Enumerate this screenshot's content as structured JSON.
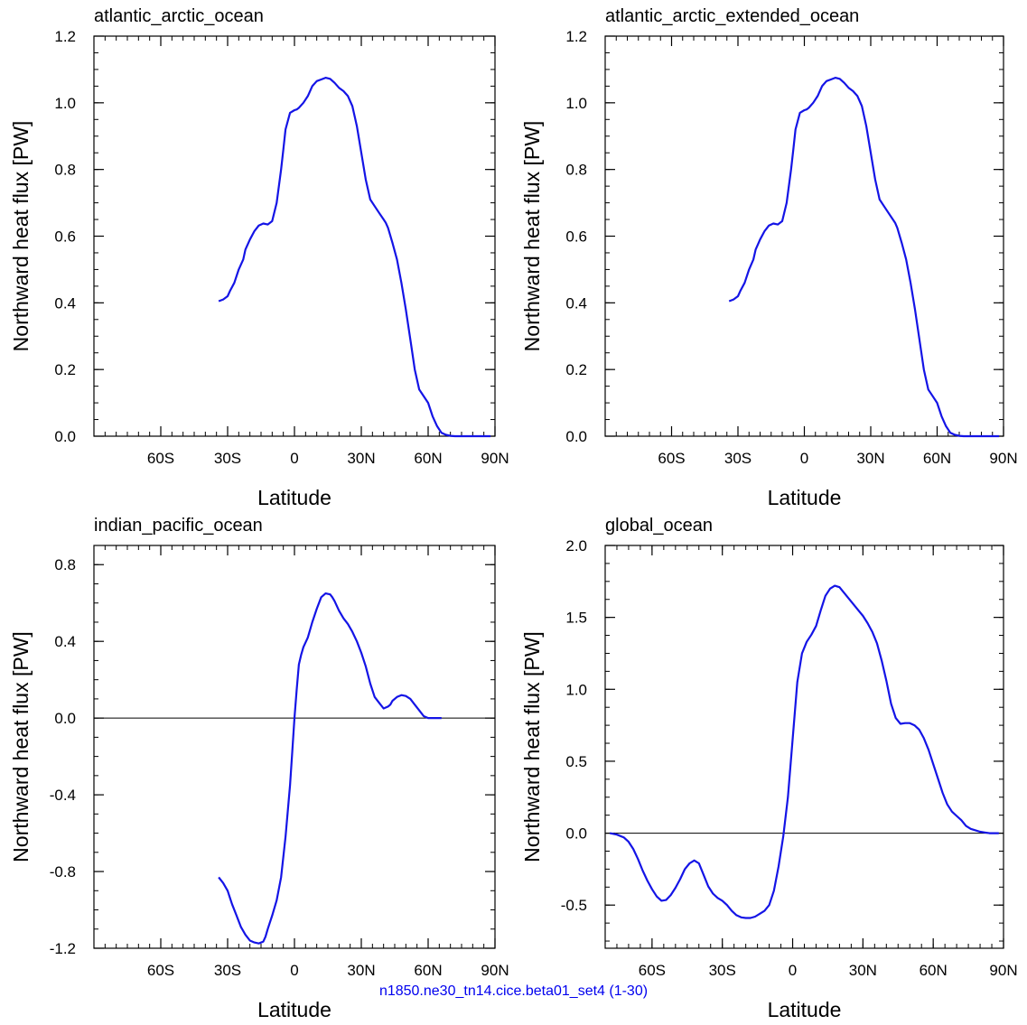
{
  "footer": "n1850.ne30_tn14.cice.beta01_set4 (1-30)",
  "line_color": "#1414e6",
  "chart_data": [
    {
      "type": "line",
      "title": "atlantic_arctic_ocean",
      "xlabel": "Latitude",
      "ylabel": "Northward heat flux [PW]",
      "xlim": [
        -90,
        90
      ],
      "ylim": [
        0,
        1.2
      ],
      "x_ticks": [
        -60,
        -30,
        0,
        30,
        60,
        90
      ],
      "x_tick_labels": [
        "60S",
        "30S",
        "0",
        "30N",
        "60N",
        "90N"
      ],
      "y_ticks": [
        0,
        0.2,
        0.4,
        0.6,
        0.8,
        1.0,
        1.2
      ],
      "y_tick_labels": [
        "0.0",
        "0.2",
        "0.4",
        "0.6",
        "0.8",
        "1.0",
        "1.2"
      ],
      "zero_line": false,
      "series": [
        {
          "x": [
            -34,
            -32,
            -30,
            -29,
            -27,
            -25,
            -23,
            -22,
            -20,
            -18,
            -16,
            -14,
            -12,
            -10,
            -8,
            -6,
            -5,
            -4,
            -2,
            0,
            1,
            2,
            4,
            6,
            8,
            10,
            12,
            14,
            16,
            18,
            20,
            22,
            24,
            26,
            28,
            30,
            32,
            34,
            36,
            38,
            40,
            41,
            42,
            44,
            46,
            48,
            50,
            52,
            54,
            56,
            58,
            60,
            62,
            64,
            66,
            68,
            70,
            72,
            74,
            76,
            78,
            80,
            84,
            88
          ],
          "y": [
            0.405,
            0.41,
            0.42,
            0.435,
            0.46,
            0.5,
            0.53,
            0.56,
            0.59,
            0.615,
            0.632,
            0.638,
            0.635,
            0.645,
            0.7,
            0.8,
            0.86,
            0.92,
            0.97,
            0.978,
            0.98,
            0.985,
            1.0,
            1.02,
            1.05,
            1.065,
            1.07,
            1.075,
            1.072,
            1.06,
            1.045,
            1.035,
            1.02,
            0.99,
            0.93,
            0.85,
            0.77,
            0.71,
            0.69,
            0.67,
            0.65,
            0.64,
            0.625,
            0.58,
            0.53,
            0.46,
            0.38,
            0.29,
            0.2,
            0.14,
            0.12,
            0.1,
            0.06,
            0.03,
            0.01,
            0.004,
            0.001,
            0.0,
            0.0,
            0.0,
            0.0,
            0.0,
            0.0,
            0.0
          ]
        }
      ]
    },
    {
      "type": "line",
      "title": "atlantic_arctic_extended_ocean",
      "xlabel": "Latitude",
      "ylabel": "Northward heat flux [PW]",
      "xlim": [
        -90,
        90
      ],
      "ylim": [
        0,
        1.2
      ],
      "x_ticks": [
        -60,
        -30,
        0,
        30,
        60,
        90
      ],
      "x_tick_labels": [
        "60S",
        "30S",
        "0",
        "30N",
        "60N",
        "90N"
      ],
      "y_ticks": [
        0,
        0.2,
        0.4,
        0.6,
        0.8,
        1.0,
        1.2
      ],
      "y_tick_labels": [
        "0.0",
        "0.2",
        "0.4",
        "0.6",
        "0.8",
        "1.0",
        "1.2"
      ],
      "zero_line": false,
      "series": [
        {
          "x": [
            -34,
            -32,
            -30,
            -29,
            -27,
            -25,
            -23,
            -22,
            -20,
            -18,
            -16,
            -14,
            -12,
            -10,
            -8,
            -6,
            -5,
            -4,
            -2,
            0,
            1,
            2,
            4,
            6,
            8,
            10,
            12,
            14,
            16,
            18,
            20,
            22,
            24,
            26,
            28,
            30,
            32,
            34,
            36,
            38,
            40,
            41,
            42,
            44,
            46,
            48,
            50,
            52,
            54,
            56,
            58,
            60,
            62,
            64,
            66,
            68,
            70,
            72,
            74,
            76,
            78,
            80,
            84,
            88
          ],
          "y": [
            0.405,
            0.41,
            0.42,
            0.435,
            0.46,
            0.5,
            0.53,
            0.56,
            0.59,
            0.615,
            0.632,
            0.638,
            0.635,
            0.645,
            0.7,
            0.8,
            0.86,
            0.92,
            0.97,
            0.978,
            0.98,
            0.985,
            1.0,
            1.02,
            1.05,
            1.065,
            1.07,
            1.075,
            1.072,
            1.06,
            1.045,
            1.035,
            1.02,
            0.99,
            0.93,
            0.85,
            0.77,
            0.71,
            0.69,
            0.67,
            0.65,
            0.64,
            0.625,
            0.58,
            0.53,
            0.46,
            0.38,
            0.29,
            0.2,
            0.14,
            0.12,
            0.1,
            0.06,
            0.03,
            0.01,
            0.004,
            0.001,
            0.0,
            0.0,
            0.0,
            0.0,
            0.0,
            0.0,
            0.0
          ]
        }
      ]
    },
    {
      "type": "line",
      "title": "indian_pacific_ocean",
      "xlabel": "Latitude",
      "ylabel": "Northward heat flux [PW]",
      "xlim": [
        -90,
        90
      ],
      "ylim": [
        -1.2,
        0.9
      ],
      "x_ticks": [
        -60,
        -30,
        0,
        30,
        60,
        90
      ],
      "x_tick_labels": [
        "60S",
        "30S",
        "0",
        "30N",
        "60N",
        "90N"
      ],
      "y_ticks": [
        -1.2,
        -0.8,
        -0.4,
        0.0,
        0.4,
        0.8
      ],
      "y_tick_labels": [
        "-1.2",
        "-0.8",
        "-0.4",
        "0.0",
        "0.4",
        "0.8"
      ],
      "zero_line": true,
      "series": [
        {
          "x": [
            -34,
            -32,
            -30,
            -28,
            -26,
            -24,
            -22,
            -20,
            -18,
            -16,
            -14,
            -13,
            -12,
            -10,
            -8,
            -6,
            -4,
            -2,
            -1,
            0,
            1,
            2,
            3,
            4,
            6,
            8,
            10,
            12,
            14,
            16,
            17,
            18,
            20,
            22,
            24,
            26,
            28,
            30,
            32,
            34,
            36,
            38,
            40,
            42,
            43,
            44,
            46,
            48,
            50,
            52,
            54,
            56,
            58,
            60,
            62,
            64,
            66
          ],
          "y": [
            -0.83,
            -0.86,
            -0.9,
            -0.97,
            -1.03,
            -1.09,
            -1.13,
            -1.16,
            -1.17,
            -1.175,
            -1.165,
            -1.14,
            -1.1,
            -1.03,
            -0.95,
            -0.83,
            -0.62,
            -0.35,
            -0.18,
            0.0,
            0.15,
            0.28,
            0.33,
            0.37,
            0.42,
            0.5,
            0.57,
            0.63,
            0.65,
            0.645,
            0.63,
            0.61,
            0.56,
            0.52,
            0.49,
            0.45,
            0.4,
            0.34,
            0.27,
            0.18,
            0.11,
            0.08,
            0.05,
            0.06,
            0.07,
            0.09,
            0.11,
            0.12,
            0.115,
            0.1,
            0.07,
            0.04,
            0.01,
            0.0,
            0.0,
            0.0,
            0.0
          ]
        }
      ]
    },
    {
      "type": "line",
      "title": "global_ocean",
      "xlabel": "Latitude",
      "ylabel": "Northward heat flux [PW]",
      "xlim": [
        -80,
        90
      ],
      "ylim": [
        -0.8,
        2.0
      ],
      "x_ticks": [
        -60,
        -30,
        0,
        30,
        60,
        90
      ],
      "x_tick_labels": [
        "60S",
        "30S",
        "0",
        "30N",
        "60N",
        "90N"
      ],
      "y_ticks": [
        -0.5,
        0.0,
        0.5,
        1.0,
        1.5,
        2.0
      ],
      "y_tick_labels": [
        "-0.5",
        "0.0",
        "0.5",
        "1.0",
        "1.5",
        "2.0"
      ],
      "zero_line": true,
      "series": [
        {
          "x": [
            -78,
            -75,
            -72,
            -70,
            -68,
            -66,
            -64,
            -62,
            -60,
            -58,
            -56,
            -54,
            -52,
            -50,
            -48,
            -46,
            -44,
            -42,
            -40,
            -38,
            -36,
            -34,
            -32,
            -30,
            -28,
            -26,
            -24,
            -22,
            -20,
            -18,
            -16,
            -14,
            -12,
            -10,
            -8,
            -6,
            -4,
            -2,
            0,
            2,
            4,
            6,
            8,
            10,
            12,
            14,
            16,
            18,
            20,
            22,
            24,
            26,
            28,
            30,
            32,
            34,
            36,
            38,
            40,
            42,
            44,
            46,
            48,
            50,
            52,
            54,
            56,
            58,
            60,
            62,
            64,
            66,
            68,
            70,
            72,
            74,
            76,
            78,
            80,
            82,
            84,
            88
          ],
          "y": [
            0.0,
            -0.01,
            -0.03,
            -0.06,
            -0.11,
            -0.18,
            -0.26,
            -0.33,
            -0.39,
            -0.44,
            -0.47,
            -0.465,
            -0.43,
            -0.38,
            -0.32,
            -0.25,
            -0.21,
            -0.19,
            -0.21,
            -0.29,
            -0.37,
            -0.42,
            -0.45,
            -0.47,
            -0.5,
            -0.54,
            -0.57,
            -0.585,
            -0.59,
            -0.59,
            -0.58,
            -0.56,
            -0.54,
            -0.5,
            -0.4,
            -0.23,
            -0.02,
            0.25,
            0.65,
            1.05,
            1.25,
            1.33,
            1.38,
            1.44,
            1.55,
            1.65,
            1.7,
            1.72,
            1.71,
            1.67,
            1.63,
            1.59,
            1.55,
            1.51,
            1.46,
            1.4,
            1.32,
            1.2,
            1.06,
            0.9,
            0.8,
            0.76,
            0.765,
            0.765,
            0.75,
            0.72,
            0.66,
            0.58,
            0.48,
            0.38,
            0.28,
            0.2,
            0.15,
            0.12,
            0.09,
            0.05,
            0.03,
            0.02,
            0.01,
            0.005,
            0.0,
            0.0
          ]
        }
      ]
    }
  ]
}
